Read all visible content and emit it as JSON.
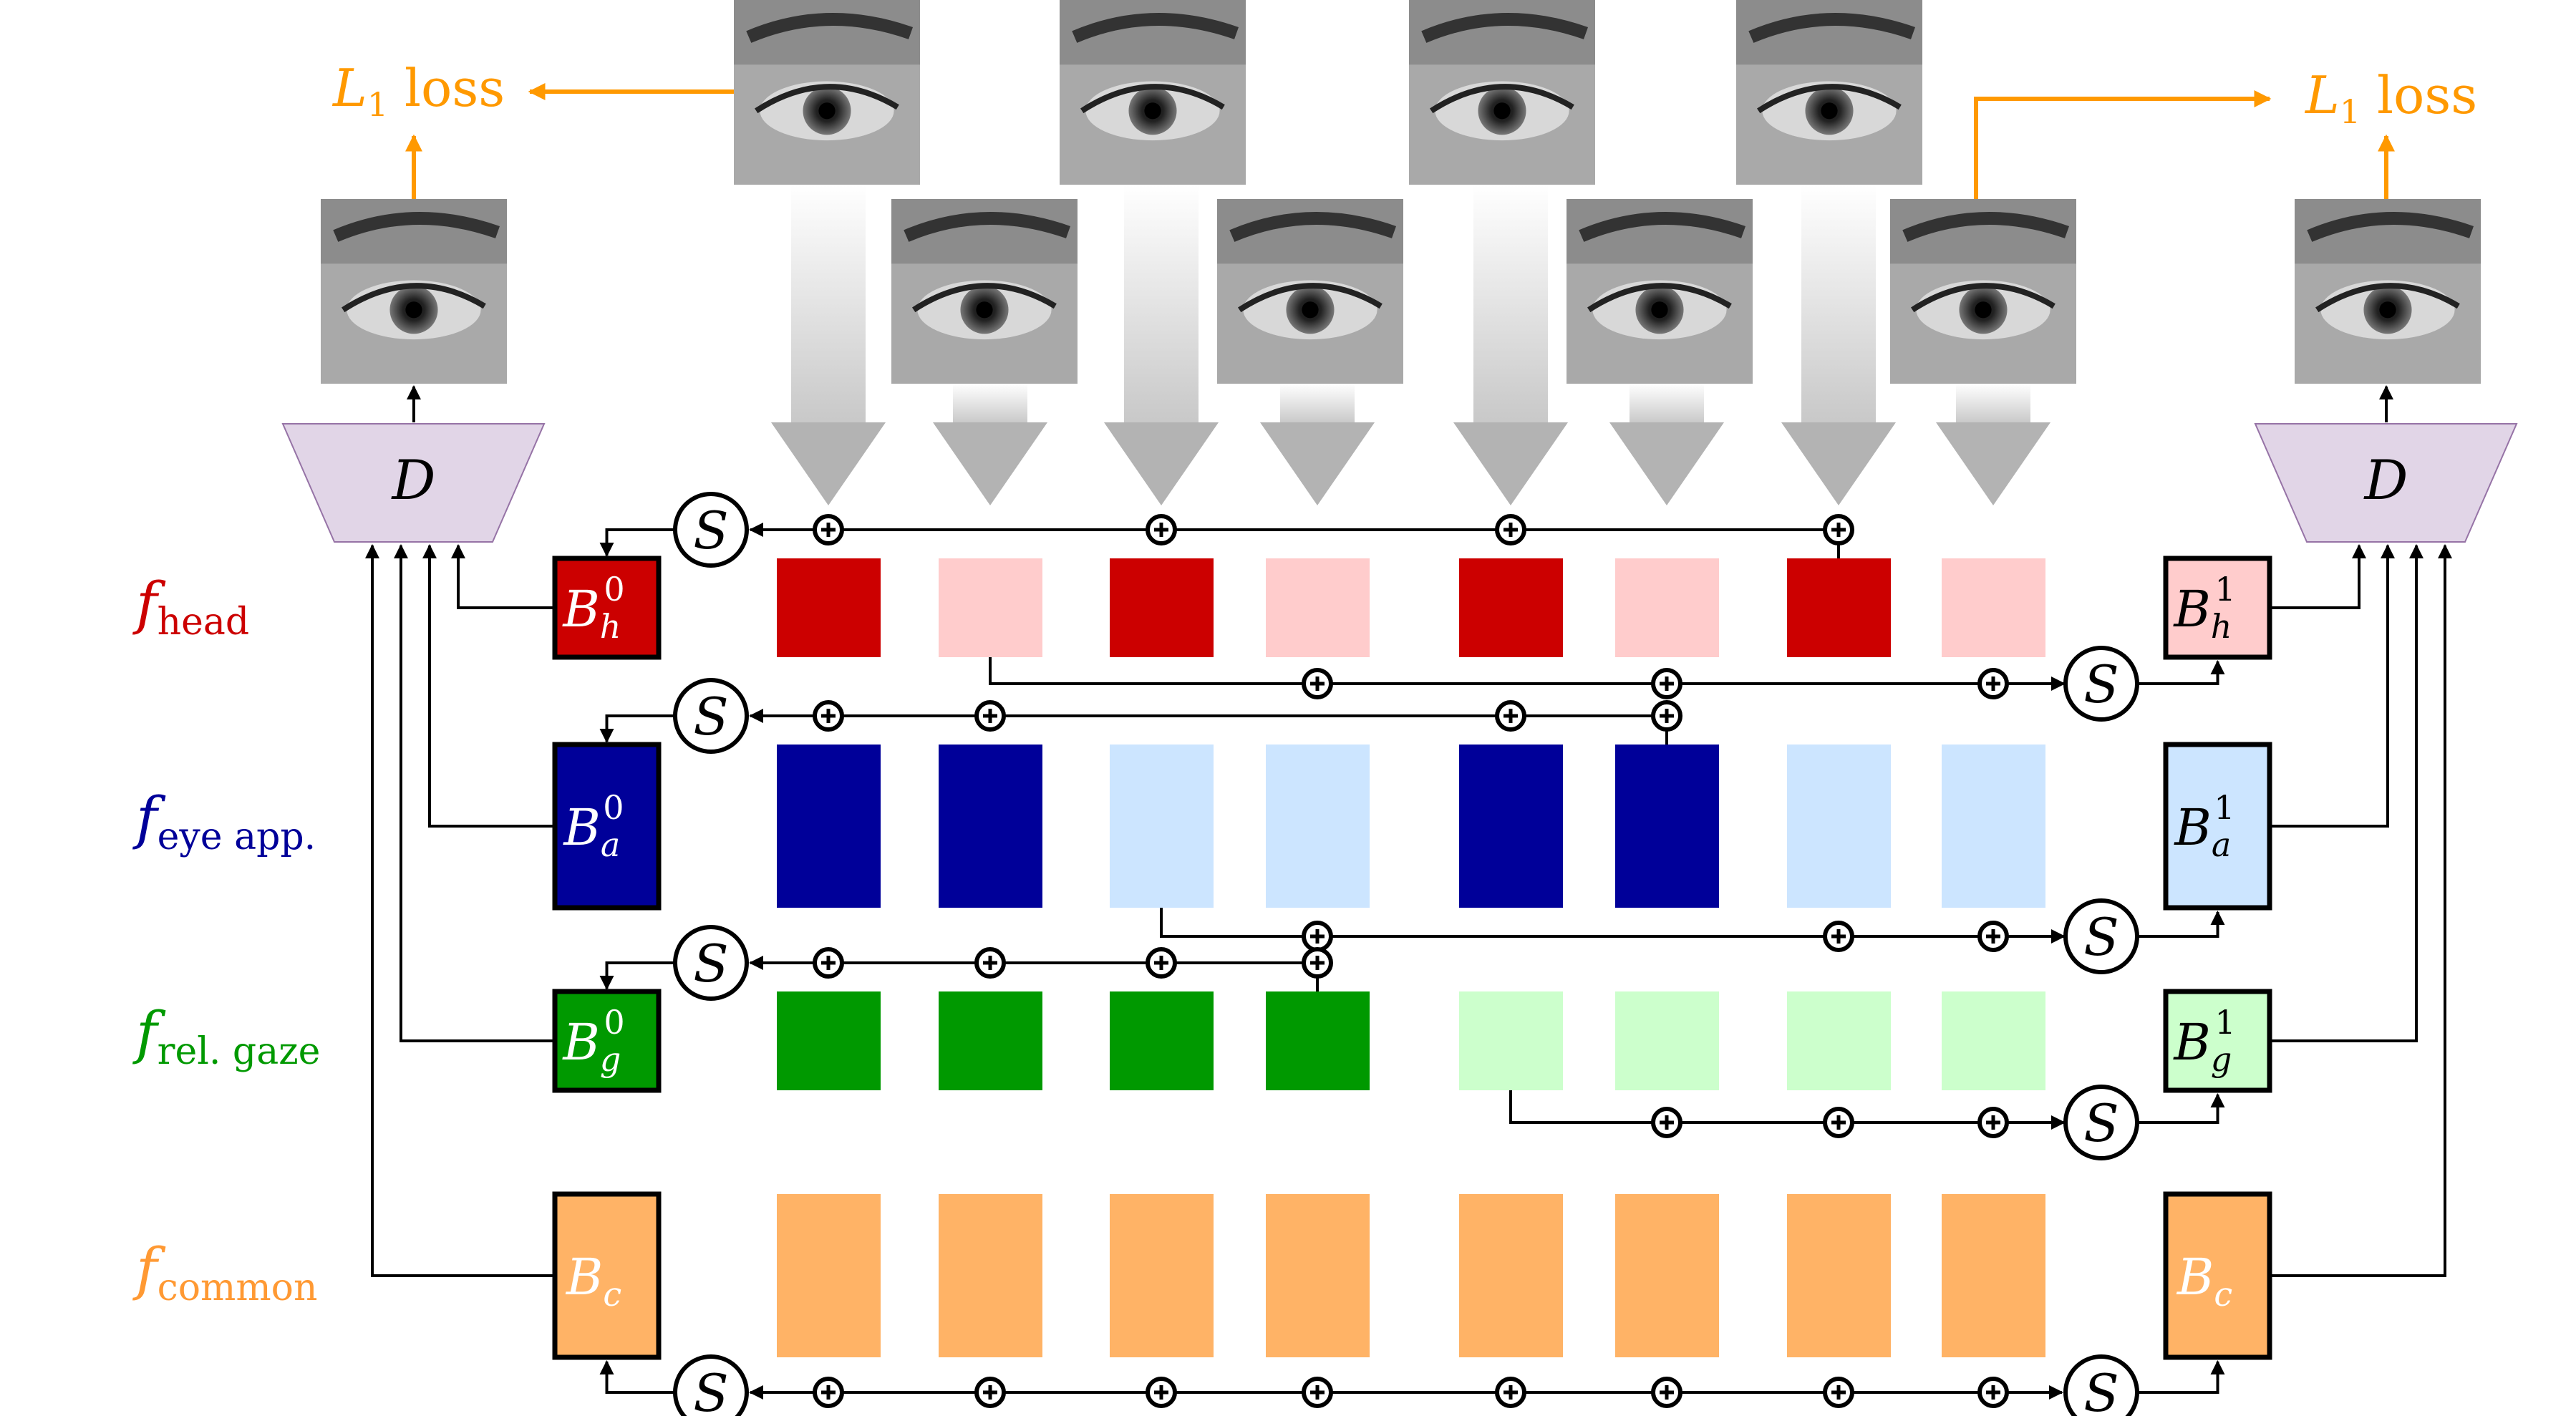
{
  "loss_label_left": {
    "main": "L",
    "sub": "1",
    "rest": " loss"
  },
  "loss_label_right": {
    "main": "L",
    "sub": "1",
    "rest": " loss"
  },
  "decoder_label": "D",
  "sum_label": "S",
  "rows": [
    {
      "key": "head",
      "label_main": "f",
      "label_sub": "head",
      "color": "#cc0000",
      "light": "#ffcccc",
      "left_block": {
        "main": "B",
        "sub": "h",
        "sup": "0"
      },
      "right_block": {
        "main": "B",
        "sub": "h",
        "sup": "1"
      }
    },
    {
      "key": "app",
      "label_main": "f",
      "label_sub": "eye app.",
      "color": "#000099",
      "light": "#cce5ff",
      "left_block": {
        "main": "B",
        "sub": "a",
        "sup": "0"
      },
      "right_block": {
        "main": "B",
        "sub": "a",
        "sup": "1"
      }
    },
    {
      "key": "gaze",
      "label_main": "f",
      "label_sub": "rel. gaze",
      "color": "#009900",
      "light": "#ccffcc",
      "left_block": {
        "main": "B",
        "sub": "g",
        "sup": "0"
      },
      "right_block": {
        "main": "B",
        "sub": "g",
        "sup": "1"
      }
    },
    {
      "key": "common",
      "label_main": "f",
      "label_sub": "common",
      "color": "#ff9933",
      "light": "#ffb366",
      "left_block": {
        "main": "B",
        "sub": "c",
        "sup": ""
      },
      "right_block": {
        "main": "B",
        "sub": "c",
        "sup": ""
      }
    }
  ],
  "colors": {
    "orange_accent": "#ff9900",
    "decoder_fill": "#e1d5e7",
    "decoder_stroke": "#9673a6",
    "arrow_gray": "#b3b3b3"
  },
  "eye_images": [
    "eye-image-1",
    "eye-image-2",
    "eye-image-3",
    "eye-image-4",
    "eye-image-5",
    "eye-image-6",
    "eye-image-7",
    "eye-image-8"
  ]
}
